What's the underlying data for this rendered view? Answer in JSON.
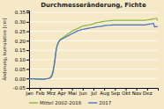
{
  "chart_data": {
    "type": "line",
    "title": "Durchmesseränderung, Fichte",
    "ylabel": "Änderung, kumulative [cm]",
    "x": [
      0,
      0.1008,
      0.2017,
      0.3025,
      0.4034,
      0.5042,
      0.605,
      0.7059,
      0.8067,
      0.9076,
      1.0084,
      1.1092,
      1.2101,
      1.3109,
      1.4118,
      1.5126,
      1.6134,
      1.7143,
      1.8151,
      1.916,
      2.0168,
      2.1176,
      2.2185,
      2.3193,
      2.4202,
      2.521,
      2.6218,
      2.7227,
      2.8235,
      2.9244,
      3.0252,
      3.1261,
      3.2269,
      3.3277,
      3.4286,
      3.5294,
      3.6303,
      3.7311,
      3.8319,
      3.9328,
      4.0336,
      4.1345,
      4.2353,
      4.3361,
      4.437,
      4.5378,
      4.6387,
      4.7395,
      4.8403,
      4.9412,
      5.042,
      5.1429,
      5.2437,
      5.3445,
      5.4454,
      5.5462,
      5.6471,
      5.7479,
      5.8487,
      5.9496,
      6.0504,
      6.1513,
      6.2521,
      6.3529,
      6.4538,
      6.5546,
      6.6555,
      6.7563,
      6.8571,
      6.958,
      7.0588,
      7.1597,
      7.2605,
      7.3613,
      7.4622,
      7.563,
      7.6639,
      7.7647,
      7.8655,
      7.9664,
      8.0672,
      8.1681,
      8.2689,
      8.3697,
      8.4706,
      8.5714,
      8.6723,
      8.7731,
      8.8739,
      8.9748,
      9.0756,
      9.1765,
      9.2773,
      9.3782,
      9.479,
      9.5798,
      9.6807,
      9.7815,
      9.8824,
      9.9832,
      10.084,
      10.1849,
      10.2857,
      10.3866,
      10.4874,
      10.5882,
      10.6891,
      10.7899,
      10.8908,
      10.9916,
      11.0924,
      11.1933,
      11.2941,
      11.395,
      11.4958,
      11.5966,
      11.6975,
      11.7983,
      11.8992,
      12
    ],
    "xlim": [
      0,
      12
    ],
    "xticks": [
      {
        "value": 0,
        "label": "Jan"
      },
      {
        "value": 1,
        "label": "Feb"
      },
      {
        "value": 2,
        "label": "Mrz"
      },
      {
        "value": 3,
        "label": "Apr"
      },
      {
        "value": 4,
        "label": "Mai"
      },
      {
        "value": 5,
        "label": "Jun"
      },
      {
        "value": 6,
        "label": "Jul"
      },
      {
        "value": 7,
        "label": "Aug"
      },
      {
        "value": 8,
        "label": "Sep"
      },
      {
        "value": 9,
        "label": "Okt"
      },
      {
        "value": 10,
        "label": "Nov"
      },
      {
        "value": 11,
        "label": "Dez"
      }
    ],
    "ylim": [
      -0.05,
      0.36
    ],
    "yticks": [
      -0.05,
      {
        "value": 0,
        "label": "0.00"
      },
      0.05,
      {
        "value": 0.1,
        "label": "0.10"
      },
      0.15,
      {
        "value": 0.2,
        "label": "0.20"
      },
      0.25,
      {
        "value": 0.3,
        "label": "0.30"
      },
      0.35
    ],
    "grid": true,
    "legend": "bottom",
    "series": [
      {
        "name": "Mittel 2002-2016",
        "color": "#8db53e",
        "values": [
          -0.002,
          -0.002,
          -0.002,
          -0.002,
          -0.002,
          -0.002,
          -0.003,
          -0.003,
          -0.003,
          -0.003,
          -0.003,
          -0.004,
          -0.004,
          -0.004,
          -0.003,
          -0.002,
          -0.001,
          0.0,
          0.001,
          0.004,
          0.01,
          0.02,
          0.04,
          0.07,
          0.11,
          0.15,
          0.175,
          0.19,
          0.2,
          0.208,
          0.212,
          0.216,
          0.22,
          0.224,
          0.228,
          0.232,
          0.236,
          0.24,
          0.244,
          0.248,
          0.252,
          0.256,
          0.258,
          0.26,
          0.262,
          0.265,
          0.268,
          0.271,
          0.274,
          0.277,
          0.278,
          0.279,
          0.28,
          0.281,
          0.282,
          0.283,
          0.284,
          0.285,
          0.287,
          0.289,
          0.291,
          0.293,
          0.295,
          0.296,
          0.297,
          0.298,
          0.299,
          0.3,
          0.301,
          0.302,
          0.303,
          0.304,
          0.305,
          0.305,
          0.306,
          0.306,
          0.307,
          0.307,
          0.308,
          0.308,
          0.308,
          0.308,
          0.308,
          0.308,
          0.308,
          0.308,
          0.308,
          0.308,
          0.308,
          0.308,
          0.308,
          0.308,
          0.308,
          0.308,
          0.308,
          0.308,
          0.308,
          0.308,
          0.308,
          0.308,
          0.308,
          0.308,
          0.308,
          0.308,
          0.308,
          0.308,
          0.308,
          0.308,
          0.309,
          0.31,
          0.311,
          0.312,
          0.313,
          0.314,
          0.315,
          0.316,
          0.317,
          0.318,
          0.319,
          0.305
        ]
      },
      {
        "name": "2017",
        "color": "#4472c4",
        "values": [
          -0.002,
          -0.002,
          -0.002,
          -0.002,
          -0.002,
          -0.002,
          -0.003,
          -0.003,
          -0.003,
          -0.003,
          -0.003,
          -0.004,
          -0.004,
          -0.004,
          -0.004,
          -0.003,
          -0.002,
          -0.001,
          0.0,
          0.002,
          0.005,
          0.012,
          0.03,
          0.06,
          0.1,
          0.15,
          0.175,
          0.19,
          0.2,
          0.205,
          0.208,
          0.211,
          0.214,
          0.217,
          0.22,
          0.223,
          0.226,
          0.229,
          0.232,
          0.235,
          0.238,
          0.241,
          0.244,
          0.247,
          0.25,
          0.252,
          0.254,
          0.256,
          0.258,
          0.26,
          0.261,
          0.262,
          0.263,
          0.264,
          0.265,
          0.266,
          0.267,
          0.268,
          0.269,
          0.27,
          0.271,
          0.272,
          0.273,
          0.274,
          0.275,
          0.276,
          0.276,
          0.277,
          0.278,
          0.279,
          0.28,
          0.281,
          0.281,
          0.282,
          0.282,
          0.283,
          0.283,
          0.284,
          0.284,
          0.284,
          0.284,
          0.284,
          0.284,
          0.284,
          0.284,
          0.284,
          0.284,
          0.284,
          0.284,
          0.284,
          0.284,
          0.284,
          0.284,
          0.284,
          0.284,
          0.284,
          0.284,
          0.284,
          0.284,
          0.284,
          0.284,
          0.284,
          0.284,
          0.284,
          0.284,
          0.284,
          0.284,
          0.284,
          0.285,
          0.286,
          0.287,
          0.288,
          0.289,
          0.29,
          0.291,
          0.292,
          0.273,
          0.274,
          0.275,
          0.276
        ]
      }
    ]
  }
}
